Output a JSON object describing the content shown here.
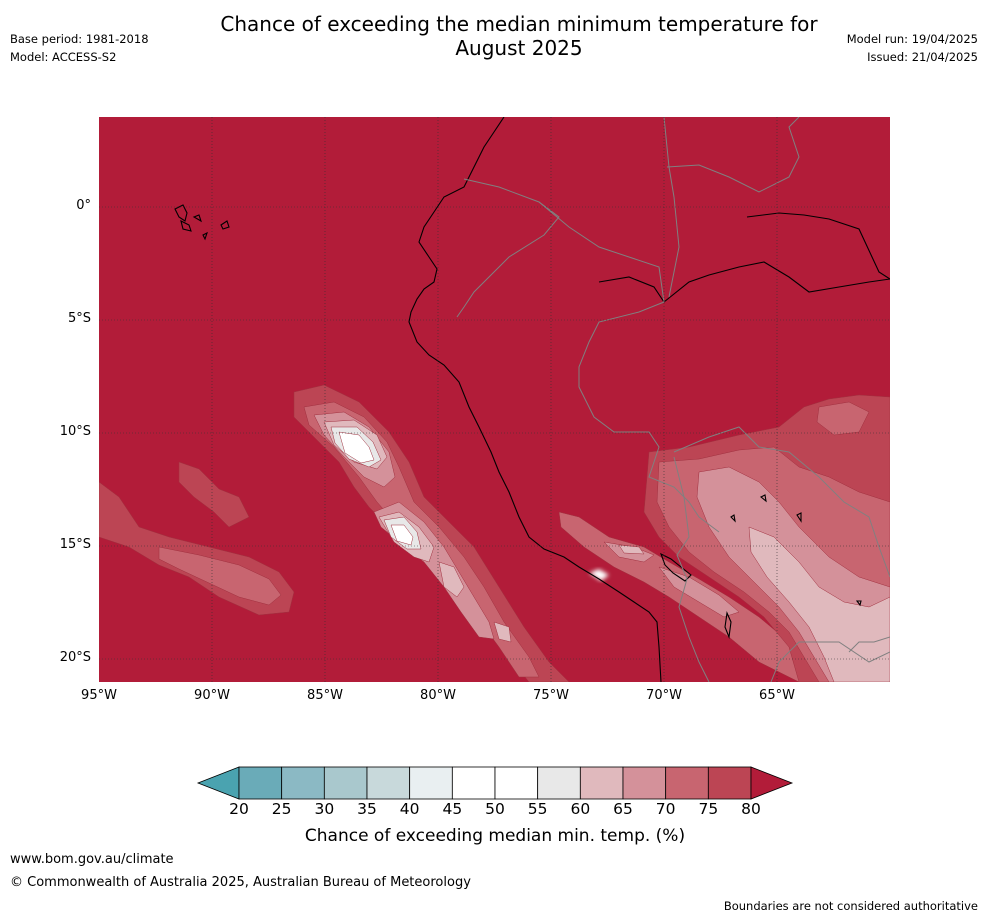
{
  "title_line1": "Chance of exceeding the median minimum temperature for",
  "title_line2": "August 2025",
  "meta_left": [
    "Base period: 1981-2018",
    "Model: ACCESS-S2"
  ],
  "meta_right": [
    "Model run: 19/04/2025",
    "Issued: 21/04/2025"
  ],
  "map": {
    "lon_range": [
      -95,
      -60
    ],
    "lat_range": [
      -21,
      4
    ],
    "lat_ticks": [
      {
        "lat": 0,
        "label": "0°"
      },
      {
        "lat": -5,
        "label": "5°S"
      },
      {
        "lat": -10,
        "label": "10°S"
      },
      {
        "lat": -15,
        "label": "15°S"
      },
      {
        "lat": -20,
        "label": "20°S"
      }
    ],
    "lon_ticks": [
      {
        "lon": -95,
        "label": "95°W"
      },
      {
        "lon": -90,
        "label": "90°W"
      },
      {
        "lon": -85,
        "label": "85°W"
      },
      {
        "lon": -80,
        "label": "80°W"
      },
      {
        "lon": -75,
        "label": "75°W"
      },
      {
        "lon": -70,
        "label": "70°W"
      },
      {
        "lon": -65,
        "label": "65°W"
      }
    ],
    "background_class": "80+",
    "grid": true
  },
  "colorbar": {
    "ticks": [
      "20",
      "25",
      "30",
      "35",
      "40",
      "45",
      "50",
      "55",
      "60",
      "65",
      "70",
      "75",
      "80"
    ],
    "colors": {
      "under": "#4aa3b0",
      "bins": [
        "#6aabb8",
        "#8bb9c4",
        "#a9c8cd",
        "#c8d9db",
        "#e9eff1",
        "#ffffff",
        "#ffffff",
        "#e8e8e8",
        "#e0b9bd",
        "#d4919a",
        "#c86570",
        "#bc4554"
      ],
      "over": "#b21c39"
    },
    "label": "Chance of exceeding median min. temp. (%)"
  },
  "footer": {
    "link": "www.bom.gov.au/climate",
    "copyright": "© Commonwealth of Australia 2025, Australian Bureau of Meteorology",
    "note": "Boundaries are not considered authoritative"
  }
}
